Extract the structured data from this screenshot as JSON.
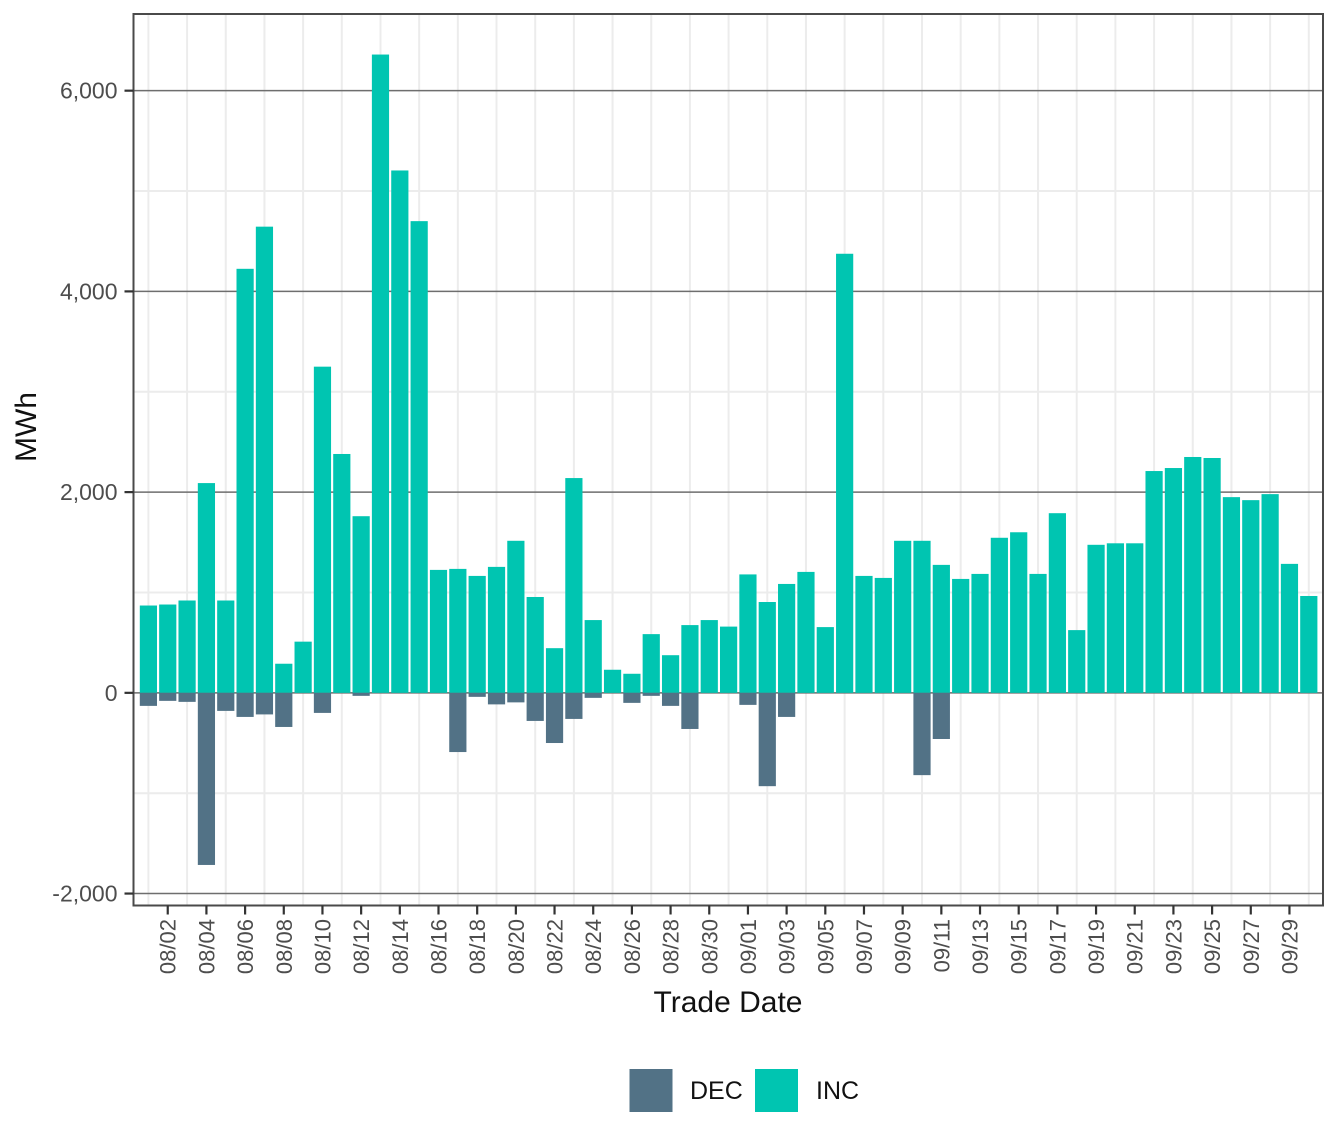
{
  "chart_data": {
    "type": "bar",
    "title": "",
    "xlabel": "Trade Date",
    "ylabel": "MWh",
    "legend_position": "bottom",
    "grid": true,
    "ylim": [
      -2119,
      6764
    ],
    "y_major_ticks": [
      -2000,
      0,
      2000,
      4000,
      6000
    ],
    "y_major_tick_labels": [
      "-2,000",
      "0",
      "2,000",
      "4,000",
      "6,000"
    ],
    "y_minor_ticks": [
      -1000,
      1000,
      3000,
      5000
    ],
    "x_tick_labels": [
      "08/02",
      "08/04",
      "08/06",
      "08/08",
      "08/10",
      "08/12",
      "08/14",
      "08/16",
      "08/18",
      "08/20",
      "08/22",
      "08/24",
      "08/26",
      "08/28",
      "08/30",
      "09/01",
      "09/03",
      "09/05",
      "09/07",
      "09/09",
      "09/11",
      "09/13",
      "09/15",
      "09/17",
      "09/19",
      "09/21",
      "09/23",
      "09/25",
      "09/27",
      "09/29"
    ],
    "categories": [
      "08/01",
      "08/02",
      "08/03",
      "08/04",
      "08/05",
      "08/06",
      "08/07",
      "08/08",
      "08/09",
      "08/10",
      "08/11",
      "08/12",
      "08/13",
      "08/14",
      "08/15",
      "08/16",
      "08/17",
      "08/18",
      "08/19",
      "08/20",
      "08/21",
      "08/22",
      "08/23",
      "08/24",
      "08/25",
      "08/26",
      "08/27",
      "08/28",
      "08/29",
      "08/30",
      "08/31",
      "09/01",
      "09/02",
      "09/03",
      "09/04",
      "09/05",
      "09/06",
      "09/07",
      "09/08",
      "09/09",
      "09/10",
      "09/11",
      "09/12",
      "09/13",
      "09/14",
      "09/15",
      "09/16",
      "09/17",
      "09/18",
      "09/19",
      "09/20",
      "09/21",
      "09/22",
      "09/23",
      "09/24",
      "09/25",
      "09/26",
      "09/27",
      "09/28",
      "09/29",
      "09/30"
    ],
    "series": [
      {
        "name": "DEC",
        "color": "#527286",
        "values": [
          -130,
          -80,
          -90,
          -1715,
          -180,
          -240,
          -215,
          -340,
          0,
          -200,
          0,
          -30,
          0,
          0,
          0,
          0,
          -590,
          -40,
          -115,
          -95,
          -280,
          -500,
          -260,
          -50,
          0,
          -100,
          -30,
          -130,
          -360,
          0,
          0,
          -120,
          -930,
          -240,
          0,
          0,
          0,
          0,
          0,
          0,
          -820,
          -460,
          0,
          0,
          0,
          0,
          0,
          0,
          0,
          0,
          0,
          0,
          0,
          0,
          0,
          0,
          0,
          0,
          0,
          0,
          0
        ]
      },
      {
        "name": "INC",
        "color": "#00C5B1",
        "values": [
          870,
          880,
          920,
          2090,
          920,
          4225,
          4645,
          290,
          510,
          3250,
          2380,
          1760,
          6360,
          5205,
          4700,
          1225,
          1235,
          1165,
          1255,
          1515,
          955,
          445,
          2140,
          725,
          230,
          190,
          585,
          375,
          675,
          725,
          660,
          1180,
          905,
          1085,
          1205,
          655,
          4375,
          1165,
          1145,
          1515,
          1515,
          1275,
          1135,
          1185,
          1545,
          1600,
          1185,
          1790,
          625,
          1475,
          1490,
          1490,
          2210,
          2240,
          2350,
          2340,
          1950,
          1920,
          1980,
          1285,
          965
        ]
      }
    ],
    "style": {
      "panel_border_color": "#4a4a4a",
      "major_gridline_color": "#6e6e6e",
      "minor_gridline_color": "#ececec",
      "tick_mark_color": "#333333",
      "background": "#ffffff"
    }
  }
}
